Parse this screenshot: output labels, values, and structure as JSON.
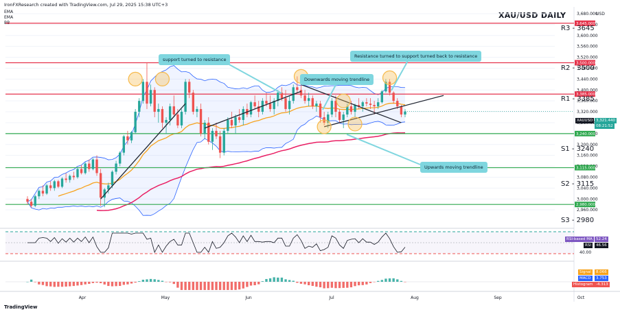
{
  "header": {
    "credit": "IronFXResearch created with TradingView.com, Jul 29, 2025 15:38 UTC+3",
    "indicators": [
      "EMA",
      "EMA",
      "BB"
    ],
    "logo": "TradingView"
  },
  "chart_data": {
    "type": "candlestick",
    "title": "XAU/USD DAILY",
    "currency": "USD",
    "ylim": [
      2900,
      3700
    ],
    "y_ticks": [
      "3,680.000",
      "3,640.000",
      "3,600.000",
      "3,560.000",
      "3,520.000",
      "3,480.000",
      "3,440.000",
      "3,400.000",
      "3,360.000",
      "3,320.000",
      "3,280.000",
      "3,240.000",
      "3,200.000",
      "3,160.000",
      "3,120.000",
      "3,080.000",
      "3,040.000",
      "3,000.000",
      "2,960.000"
    ],
    "y_tick_values": [
      3680,
      3640,
      3600,
      3560,
      3520,
      3480,
      3440,
      3400,
      3360,
      3320,
      3280,
      3240,
      3200,
      3160,
      3120,
      3080,
      3040,
      3000,
      2960
    ],
    "x_ticks": [
      "Apr",
      "May",
      "Jun",
      "Jul",
      "Aug",
      "Sep",
      "Oct"
    ],
    "levels": [
      {
        "name": "R3 - 3645",
        "value": 3645,
        "tag": "3,645.000",
        "color": "#e5334b"
      },
      {
        "name": "R2 - 3500",
        "value": 3500,
        "tag": "3,500.000",
        "color": "#e5334b"
      },
      {
        "name": "R1 - 3385",
        "value": 3385,
        "tag": "3,385.000",
        "color": "#e5334b"
      },
      {
        "name": "S1 - 3240",
        "value": 3240,
        "tag": "3,240.000",
        "color": "#2fa84f"
      },
      {
        "name": "S2 - 3115",
        "value": 3115,
        "tag": "3,115.000",
        "color": "#2fa84f"
      },
      {
        "name": "S3 - 2980",
        "value": 2980,
        "tag": "2,980.000",
        "color": "#2fa84f"
      }
    ],
    "last_price": {
      "symbol": "XAUUSD",
      "price": "3,321.440",
      "countdown": "08:21:52"
    },
    "ohlc": [
      [
        3000,
        3010,
        2980,
        2990
      ],
      [
        2990,
        3000,
        2968,
        2975
      ],
      [
        2975,
        3015,
        2970,
        3010
      ],
      [
        3010,
        3035,
        3000,
        3030
      ],
      [
        3030,
        3050,
        3010,
        3020
      ],
      [
        3020,
        3055,
        3015,
        3050
      ],
      [
        3050,
        3065,
        3030,
        3040
      ],
      [
        3040,
        3070,
        3030,
        3065
      ],
      [
        3065,
        3070,
        3040,
        3045
      ],
      [
        3045,
        3080,
        3040,
        3075
      ],
      [
        3075,
        3095,
        3060,
        3070
      ],
      [
        3070,
        3090,
        3060,
        3085
      ],
      [
        3085,
        3100,
        3070,
        3080
      ],
      [
        3080,
        3115,
        3075,
        3110
      ],
      [
        3110,
        3125,
        3090,
        3095
      ],
      [
        3095,
        3135,
        3090,
        3130
      ],
      [
        3130,
        3145,
        3100,
        3110
      ],
      [
        3110,
        3150,
        3105,
        3145
      ],
      [
        3145,
        3160,
        3085,
        3095
      ],
      [
        3095,
        3110,
        2975,
        3005
      ],
      [
        3005,
        3040,
        2970,
        3035
      ],
      [
        3035,
        3060,
        3020,
        3050
      ],
      [
        3050,
        3105,
        3040,
        3100
      ],
      [
        3100,
        3140,
        3090,
        3130
      ],
      [
        3130,
        3175,
        3120,
        3170
      ],
      [
        3170,
        3235,
        3160,
        3230
      ],
      [
        3230,
        3250,
        3200,
        3215
      ],
      [
        3215,
        3250,
        3205,
        3245
      ],
      [
        3245,
        3330,
        3240,
        3320
      ],
      [
        3320,
        3370,
        3300,
        3360
      ],
      [
        3360,
        3440,
        3350,
        3430
      ],
      [
        3430,
        3500,
        3330,
        3350
      ],
      [
        3350,
        3420,
        3340,
        3400
      ],
      [
        3400,
        3410,
        3300,
        3320
      ],
      [
        3320,
        3350,
        3280,
        3330
      ],
      [
        3330,
        3340,
        3260,
        3280
      ],
      [
        3280,
        3300,
        3240,
        3290
      ],
      [
        3290,
        3350,
        3270,
        3340
      ],
      [
        3340,
        3380,
        3300,
        3310
      ],
      [
        3310,
        3330,
        3260,
        3270
      ],
      [
        3270,
        3330,
        3260,
        3320
      ],
      [
        3320,
        3440,
        3310,
        3430
      ],
      [
        3430,
        3440,
        3370,
        3390
      ],
      [
        3390,
        3400,
        3310,
        3320
      ],
      [
        3320,
        3340,
        3300,
        3330
      ],
      [
        3330,
        3350,
        3230,
        3240
      ],
      [
        3240,
        3290,
        3220,
        3280
      ],
      [
        3280,
        3300,
        3200,
        3210
      ],
      [
        3210,
        3260,
        3180,
        3250
      ],
      [
        3250,
        3280,
        3220,
        3230
      ],
      [
        3230,
        3250,
        3150,
        3170
      ],
      [
        3170,
        3260,
        3160,
        3250
      ],
      [
        3250,
        3300,
        3240,
        3290
      ],
      [
        3290,
        3320,
        3260,
        3270
      ],
      [
        3270,
        3310,
        3240,
        3300
      ],
      [
        3300,
        3330,
        3280,
        3290
      ],
      [
        3290,
        3340,
        3270,
        3330
      ],
      [
        3330,
        3350,
        3300,
        3310
      ],
      [
        3310,
        3360,
        3300,
        3355
      ],
      [
        3355,
        3380,
        3330,
        3340
      ],
      [
        3340,
        3360,
        3300,
        3320
      ],
      [
        3320,
        3370,
        3310,
        3360
      ],
      [
        3360,
        3390,
        3340,
        3350
      ],
      [
        3350,
        3380,
        3320,
        3330
      ],
      [
        3330,
        3370,
        3310,
        3360
      ],
      [
        3360,
        3400,
        3340,
        3390
      ],
      [
        3390,
        3410,
        3360,
        3370
      ],
      [
        3370,
        3400,
        3320,
        3330
      ],
      [
        3330,
        3380,
        3310,
        3360
      ],
      [
        3360,
        3420,
        3350,
        3410
      ],
      [
        3410,
        3450,
        3390,
        3400
      ],
      [
        3400,
        3420,
        3370,
        3380
      ],
      [
        3380,
        3400,
        3350,
        3360
      ],
      [
        3360,
        3390,
        3340,
        3370
      ],
      [
        3370,
        3380,
        3330,
        3340
      ],
      [
        3340,
        3360,
        3320,
        3350
      ],
      [
        3350,
        3360,
        3280,
        3300
      ],
      [
        3300,
        3320,
        3270,
        3280
      ],
      [
        3280,
        3320,
        3260,
        3310
      ],
      [
        3310,
        3370,
        3300,
        3360
      ],
      [
        3360,
        3380,
        3300,
        3320
      ],
      [
        3320,
        3330,
        3280,
        3290
      ],
      [
        3290,
        3320,
        3260,
        3310
      ],
      [
        3310,
        3350,
        3300,
        3340
      ],
      [
        3340,
        3360,
        3310,
        3320
      ],
      [
        3320,
        3350,
        3300,
        3345
      ],
      [
        3345,
        3370,
        3330,
        3340
      ],
      [
        3340,
        3360,
        3320,
        3355
      ],
      [
        3355,
        3370,
        3340,
        3350
      ],
      [
        3350,
        3370,
        3330,
        3345
      ],
      [
        3345,
        3360,
        3310,
        3340
      ],
      [
        3340,
        3370,
        3330,
        3355
      ],
      [
        3355,
        3400,
        3350,
        3395
      ],
      [
        3395,
        3440,
        3390,
        3430
      ],
      [
        3430,
        3440,
        3380,
        3390
      ],
      [
        3390,
        3395,
        3350,
        3360
      ],
      [
        3360,
        3370,
        3330,
        3340
      ],
      [
        3340,
        3345,
        3300,
        3310
      ],
      [
        3310,
        3330,
        3300,
        3321
      ]
    ],
    "rsi": {
      "label": "RSI-based MA",
      "ma": "52.24",
      "label2": "RSI",
      "value": "46.56",
      "upper": 70,
      "lower": 30,
      "tick": "40.00"
    },
    "macd": {
      "label": "MACD",
      "signal": "8.066",
      "macd": "3.753",
      "histogram": "-4.313",
      "labels": [
        "Signal",
        "MACD",
        "Histogram"
      ]
    }
  },
  "annotations": {
    "support_to_resistance": "support turned to resistance",
    "resistance_support_resistance": "Resistance turned to support turned back to resistance",
    "downwards_trendline": "Downwards moving trendline",
    "upwards_trendline": "Upwards moving trendline"
  },
  "colors": {
    "bull": "#26a69a",
    "bear": "#ef5350",
    "ema_fast": "#f7a21b",
    "ema_slow": "#e91e63",
    "bb": "#2962ff",
    "callout": "#7fd6df",
    "highlight": "#f6b94a"
  }
}
